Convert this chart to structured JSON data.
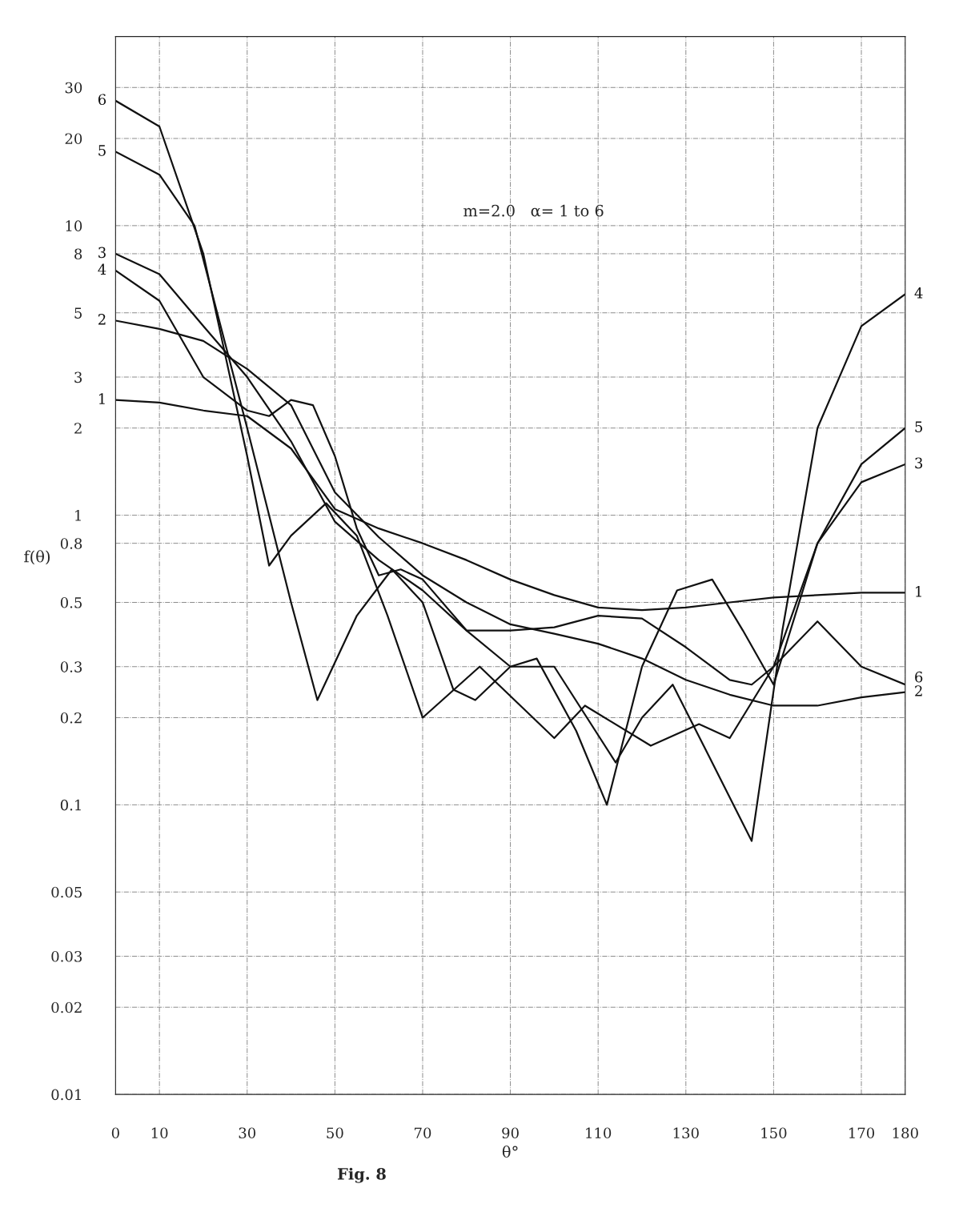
{
  "chart_data": {
    "type": "line",
    "xlabel": "θ°",
    "ylabel": "f(θ)",
    "log": "y",
    "grid": true,
    "legend": false,
    "marker": "none",
    "line_style": "solid",
    "annotations": [
      "m=2.0   α= 1 to 6",
      "Fig. 8"
    ],
    "xlim": [
      0,
      180
    ],
    "xticks": [
      0,
      10,
      30,
      50,
      70,
      90,
      110,
      130,
      150,
      170,
      180
    ],
    "ylim": [
      0.01,
      45
    ],
    "yticks": [
      0.01,
      0.02,
      0.03,
      0.05,
      0.1,
      0.2,
      0.3,
      0.5,
      0.8,
      1,
      2,
      3,
      5,
      8,
      10,
      20,
      30
    ],
    "series": [
      {
        "name": "1",
        "color": "#111111",
        "x": [
          0,
          10,
          20,
          30,
          40,
          50,
          60,
          70,
          80,
          90,
          100,
          110,
          120,
          130,
          140,
          150,
          160,
          170,
          180
        ],
        "values": [
          2.5,
          2.45,
          2.3,
          2.2,
          1.7,
          1.05,
          0.9,
          0.8,
          0.7,
          0.6,
          0.53,
          0.48,
          0.47,
          0.48,
          0.5,
          0.52,
          0.53,
          0.54,
          0.54
        ]
      },
      {
        "name": "2",
        "color": "#111111",
        "x": [
          0,
          10,
          20,
          30,
          40,
          50,
          60,
          70,
          80,
          90,
          100,
          110,
          120,
          130,
          140,
          150,
          160,
          170,
          180
        ],
        "values": [
          4.7,
          4.4,
          4.0,
          3.2,
          2.4,
          1.2,
          0.84,
          0.62,
          0.5,
          0.42,
          0.39,
          0.36,
          0.32,
          0.27,
          0.24,
          0.22,
          0.22,
          0.235,
          0.245
        ]
      },
      {
        "name": "3",
        "color": "#111111",
        "x": [
          0,
          10,
          20,
          30,
          40,
          50,
          60,
          70,
          80,
          90,
          100,
          110,
          120,
          130,
          140,
          145,
          150,
          160,
          170,
          180
        ],
        "values": [
          8,
          6.8,
          4.5,
          3.0,
          1.8,
          0.95,
          0.7,
          0.55,
          0.4,
          0.4,
          0.41,
          0.45,
          0.44,
          0.35,
          0.27,
          0.26,
          0.3,
          0.8,
          1.3,
          1.5
        ]
      },
      {
        "name": "4",
        "color": "#111111",
        "x": [
          0,
          10,
          20,
          30,
          35,
          40,
          45,
          50,
          55,
          60,
          65,
          70,
          80,
          90,
          100,
          114,
          120,
          127,
          135,
          145,
          152,
          160,
          170,
          180
        ],
        "values": [
          7,
          5.5,
          3.0,
          2.3,
          2.2,
          2.5,
          2.4,
          1.6,
          0.9,
          0.62,
          0.65,
          0.6,
          0.4,
          0.3,
          0.3,
          0.14,
          0.2,
          0.26,
          0.15,
          0.075,
          0.4,
          2.0,
          4.5,
          5.8
        ]
      },
      {
        "name": "5",
        "color": "#111111",
        "x": [
          0,
          10,
          18,
          30,
          40,
          46,
          55,
          63,
          70,
          77,
          82,
          90,
          96,
          105,
          112,
          120,
          128,
          136,
          143,
          150,
          160,
          170,
          180
        ],
        "values": [
          18,
          15,
          10,
          2.0,
          0.5,
          0.23,
          0.45,
          0.65,
          0.5,
          0.25,
          0.23,
          0.3,
          0.32,
          0.18,
          0.1,
          0.3,
          0.55,
          0.6,
          0.4,
          0.26,
          0.8,
          1.5,
          2.0
        ]
      },
      {
        "name": "6",
        "color": "#111111",
        "x": [
          0,
          10,
          20,
          30,
          35,
          40,
          48,
          55,
          62,
          70,
          83,
          100,
          107,
          122,
          133,
          140,
          150,
          160,
          170,
          180
        ],
        "values": [
          27,
          22,
          8,
          1.6,
          0.67,
          0.85,
          1.1,
          0.85,
          0.45,
          0.2,
          0.3,
          0.17,
          0.22,
          0.16,
          0.19,
          0.17,
          0.3,
          0.43,
          0.3,
          0.26
        ]
      }
    ]
  }
}
